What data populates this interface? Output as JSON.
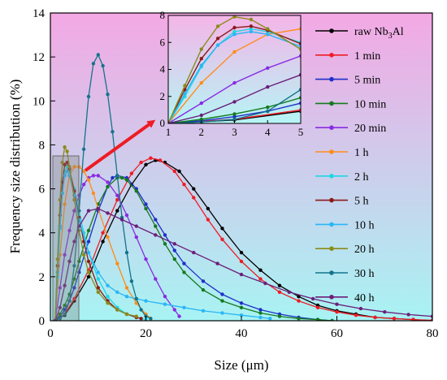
{
  "chart_data": {
    "type": "line",
    "xlabel": "Size (μm)",
    "ylabel": "Frequency size distribution (%)",
    "xlim": [
      0,
      80
    ],
    "ylim": [
      0,
      14
    ],
    "xticks": [
      "0",
      "20",
      "40",
      "60",
      "80"
    ],
    "yticks": [
      "0",
      "2",
      "4",
      "6",
      "8",
      "10",
      "12",
      "14"
    ],
    "background_gradient": {
      "top": "#f3a8e4",
      "bottom": "#a8f3f3"
    },
    "inset": {
      "xlim": [
        1,
        5
      ],
      "ylim": [
        0,
        8
      ],
      "xticks": [
        "1",
        "2",
        "3",
        "4",
        "5"
      ],
      "yticks": [
        "0",
        "2",
        "4",
        "6",
        "8"
      ]
    },
    "legend_placement": "right",
    "series": [
      {
        "name": "raw Nb3Al",
        "label_main": "raw Nb",
        "label_sub": "3",
        "label_tail": "Al",
        "color": "#000000",
        "x": [
          1,
          3,
          5,
          8,
          11,
          14,
          17,
          20,
          22,
          24,
          27,
          30,
          33,
          36,
          40,
          44,
          48,
          52,
          56,
          60,
          64,
          68,
          72,
          76,
          80
        ],
        "y": [
          0,
          0.25,
          0.9,
          2.0,
          3.6,
          5.0,
          6.2,
          7.1,
          7.3,
          7.2,
          6.8,
          6.0,
          5.1,
          4.2,
          3.1,
          2.3,
          1.6,
          1.1,
          0.7,
          0.45,
          0.3,
          0.15,
          0.1,
          0.05,
          0
        ]
      },
      {
        "name": "1 min",
        "color": "#ee1c25",
        "x": [
          1,
          3,
          5,
          8,
          11,
          14,
          17,
          19,
          21,
          23,
          26,
          28,
          30,
          33,
          36,
          40,
          44,
          48,
          52,
          56,
          60,
          64,
          68,
          72,
          76,
          80
        ],
        "y": [
          0,
          0.3,
          1.0,
          2.3,
          4.0,
          5.5,
          6.7,
          7.2,
          7.4,
          7.3,
          6.8,
          6.2,
          5.6,
          4.6,
          3.7,
          2.7,
          1.9,
          1.3,
          0.9,
          0.6,
          0.4,
          0.25,
          0.15,
          0.1,
          0.05,
          0.02
        ]
      },
      {
        "name": "5 min",
        "color": "#1f2fc8",
        "x": [
          1,
          2,
          3,
          4,
          5,
          6,
          8,
          10,
          12,
          13,
          14,
          16,
          18,
          20,
          22,
          24,
          26,
          28,
          32,
          36,
          40,
          44,
          48,
          52,
          56,
          59
        ],
        "y": [
          0,
          0.2,
          0.5,
          0.9,
          1.5,
          2.2,
          3.6,
          5.0,
          6.1,
          6.5,
          6.6,
          6.5,
          6.0,
          5.3,
          4.6,
          3.9,
          3.2,
          2.6,
          1.8,
          1.2,
          0.8,
          0.5,
          0.3,
          0.15,
          0.05,
          0
        ]
      },
      {
        "name": "10 min",
        "color": "#157a1e",
        "x": [
          1,
          2,
          3,
          4,
          5,
          6,
          8,
          10,
          12,
          14,
          15,
          16,
          18,
          20,
          22,
          24,
          26,
          28,
          32,
          36,
          40,
          44,
          48,
          52,
          56,
          59
        ],
        "y": [
          0,
          0.3,
          0.7,
          1.2,
          1.9,
          2.7,
          4.1,
          5.3,
          6.1,
          6.5,
          6.5,
          6.4,
          5.9,
          5.1,
          4.3,
          3.5,
          2.8,
          2.2,
          1.4,
          0.9,
          0.6,
          0.35,
          0.2,
          0.1,
          0.05,
          0
        ]
      },
      {
        "name": "20 min",
        "color": "#8a2be2",
        "x": [
          1,
          2,
          3,
          4,
          5,
          6,
          7,
          8,
          9,
          10,
          12,
          14,
          16,
          18,
          20,
          22,
          24,
          26,
          27
        ],
        "y": [
          0,
          1.5,
          3.0,
          4.1,
          5.0,
          5.7,
          6.2,
          6.5,
          6.6,
          6.6,
          6.3,
          5.7,
          4.8,
          3.8,
          2.8,
          1.9,
          1.1,
          0.5,
          0.2
        ]
      },
      {
        "name": "1 h",
        "color": "#ff8c1a",
        "x": [
          1,
          2,
          3,
          4,
          5,
          6,
          7,
          8,
          9,
          10,
          12,
          14,
          16,
          18,
          20,
          21
        ],
        "y": [
          0,
          3.0,
          5.3,
          6.6,
          7.0,
          7.0,
          6.8,
          6.4,
          5.8,
          5.1,
          3.8,
          2.6,
          1.5,
          0.8,
          0.3,
          0.1
        ]
      },
      {
        "name": "2 h",
        "color": "#1ed6e6",
        "x": [
          1,
          1.5,
          2,
          2.5,
          3,
          3.5,
          4,
          5,
          6,
          7,
          8,
          10,
          12,
          14,
          16,
          18,
          20
        ],
        "y": [
          0,
          2.0,
          4.2,
          5.8,
          6.8,
          7.0,
          6.8,
          6.0,
          5.0,
          4.0,
          3.1,
          1.9,
          1.1,
          0.6,
          0.3,
          0.15,
          0.05
        ]
      },
      {
        "name": "5 h",
        "color": "#8b1a1a",
        "x": [
          1,
          1.5,
          2,
          2.5,
          3,
          3.5,
          4,
          5,
          6,
          7,
          8,
          10,
          12,
          14,
          16,
          18,
          19
        ],
        "y": [
          0,
          2.5,
          4.8,
          6.3,
          7.1,
          7.2,
          6.9,
          5.9,
          4.7,
          3.6,
          2.7,
          1.5,
          0.9,
          0.5,
          0.3,
          0.15,
          0.1
        ]
      },
      {
        "name": "10 h",
        "color": "#29b6f6",
        "x": [
          1,
          1.5,
          2,
          2.5,
          3,
          3.5,
          4,
          5,
          6,
          8,
          10,
          12,
          14,
          16,
          18,
          20,
          24,
          28,
          32,
          36,
          40,
          44,
          46
        ],
        "y": [
          0,
          2.2,
          4.3,
          5.8,
          6.6,
          6.8,
          6.6,
          5.7,
          4.6,
          3.1,
          2.2,
          1.6,
          1.3,
          1.1,
          1.0,
          0.9,
          0.75,
          0.6,
          0.45,
          0.35,
          0.25,
          0.15,
          0.1
        ]
      },
      {
        "name": "20 h",
        "color": "#8b8b1a",
        "x": [
          1,
          1.5,
          2,
          2.5,
          3,
          3.5,
          4,
          5,
          6,
          7,
          8,
          10,
          12,
          14,
          16,
          18
        ],
        "y": [
          0,
          2.8,
          5.5,
          7.2,
          7.9,
          7.7,
          7.0,
          5.5,
          4.1,
          3.0,
          2.2,
          1.3,
          0.8,
          0.5,
          0.3,
          0.2
        ]
      },
      {
        "name": "30 h",
        "color": "#14738a",
        "x": [
          1,
          2,
          3,
          4,
          5,
          6,
          7,
          8,
          9,
          10,
          11,
          12,
          13,
          14,
          15,
          16,
          17,
          18,
          19,
          20,
          21
        ],
        "y": [
          0,
          0.1,
          0.3,
          0.9,
          2.5,
          5.0,
          7.8,
          10.2,
          11.7,
          12.1,
          11.6,
          10.3,
          8.6,
          6.6,
          4.7,
          3.1,
          1.8,
          1.0,
          0.5,
          0.2,
          0.1
        ]
      },
      {
        "name": "40 h",
        "color": "#6b1f7a",
        "x": [
          1,
          2,
          3,
          4,
          5,
          6,
          8,
          10,
          12,
          15,
          18,
          22,
          26,
          30,
          35,
          40,
          45,
          50,
          55,
          60,
          65,
          70,
          75,
          80
        ],
        "y": [
          0,
          0.6,
          1.6,
          2.7,
          3.6,
          4.3,
          5.0,
          5.1,
          4.9,
          4.6,
          4.3,
          3.9,
          3.5,
          3.1,
          2.6,
          2.1,
          1.7,
          1.3,
          1.0,
          0.75,
          0.55,
          0.4,
          0.28,
          0.2
        ]
      }
    ]
  }
}
